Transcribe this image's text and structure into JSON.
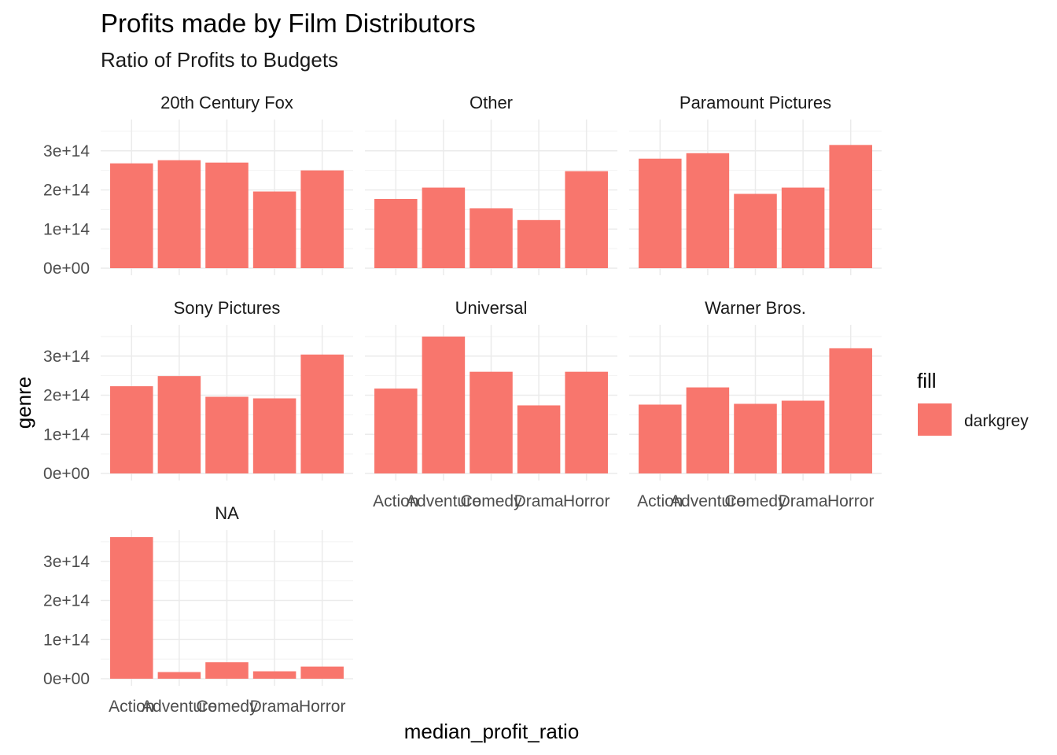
{
  "chart_data": {
    "type": "bar",
    "title": "Profits made by Film Distributors",
    "subtitle": "Ratio of Profits to Budgets",
    "xlabel": "median_profit_ratio",
    "ylabel": "genre",
    "categories": [
      "Action",
      "Adventure",
      "Comedy",
      "Drama",
      "Horror"
    ],
    "y_ticks": [
      "0e+00",
      "1e+14",
      "2e+14",
      "3e+14"
    ],
    "ylim": [
      0,
      380000000000000
    ],
    "grid": true,
    "legend": {
      "title": "fill",
      "label": "darkgrey",
      "color": "#F8766D",
      "position": "right"
    },
    "bar_color": "#F8766D",
    "facets": [
      {
        "name": "20th Century Fox",
        "values": [
          268000000000000.0,
          276000000000000.0,
          270000000000000.0,
          196000000000000.0,
          250000000000000.0
        ]
      },
      {
        "name": "Other",
        "values": [
          177000000000000.0,
          206000000000000.0,
          153000000000000.0,
          123000000000000.0,
          248000000000000.0
        ]
      },
      {
        "name": "Paramount Pictures",
        "values": [
          280000000000000.0,
          294000000000000.0,
          190000000000000.0,
          206000000000000.0,
          315000000000000.0
        ]
      },
      {
        "name": "Sony Pictures",
        "values": [
          223000000000000.0,
          249000000000000.0,
          196000000000000.0,
          192000000000000.0,
          304000000000000.0
        ]
      },
      {
        "name": "Universal",
        "values": [
          217000000000000.0,
          350000000000000.0,
          260000000000000.0,
          174000000000000.0,
          260000000000000.0
        ]
      },
      {
        "name": "Warner Bros.",
        "values": [
          176000000000000.0,
          220000000000000.0,
          178000000000000.0,
          186000000000000.0,
          320000000000000.0
        ]
      },
      {
        "name": "NA",
        "values": [
          362000000000000.0,
          17000000000000.0,
          42000000000000.0,
          19000000000000.0,
          31000000000000.0
        ]
      }
    ]
  }
}
